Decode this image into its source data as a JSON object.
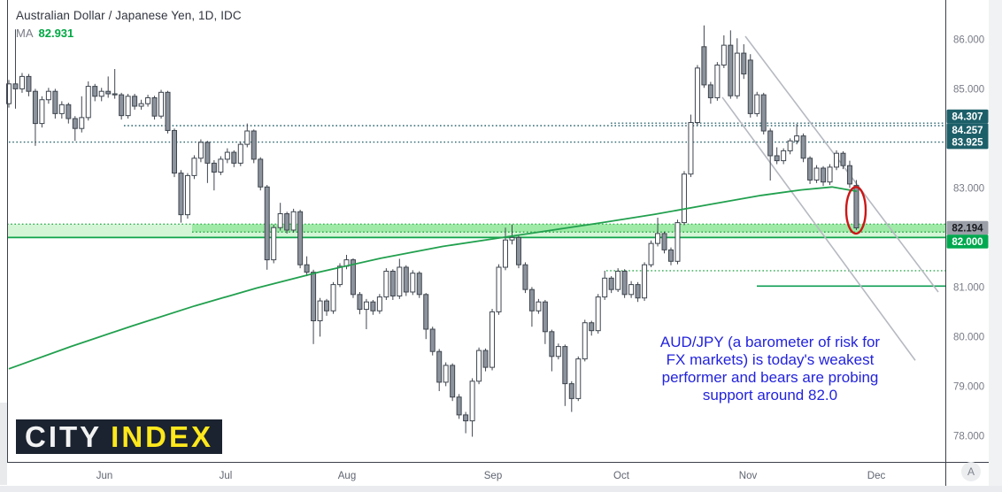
{
  "header": {
    "title": "Australian Dollar / Japanese Yen, 1D, IDC",
    "ma_label": "MA",
    "ma_value": "82.931",
    "ma_value_color": "#00a843"
  },
  "annotation": {
    "color": "#2323dd",
    "text": "AUD/JPY (a barometer of risk for FX markets) is today's weakest performer and bears are probing support around 82.0",
    "lines": [
      "AUD/JPY (a barometer of risk for",
      "FX markets) is today's weakest",
      "performer and bears are probing",
      "support around 82.0"
    ]
  },
  "logo": {
    "part1": "CITY",
    "part2": "INDEX",
    "bg": "#1b2330",
    "color1": "#f2f2f2",
    "color2": "#ffe81c"
  },
  "x_axis": {
    "months": [
      {
        "label": "Jun",
        "x": 118
      },
      {
        "label": "Jul",
        "x": 255
      },
      {
        "label": "Aug",
        "x": 392
      },
      {
        "label": "Sep",
        "x": 557
      },
      {
        "label": "Oct",
        "x": 702
      },
      {
        "label": "Nov",
        "x": 845
      },
      {
        "label": "Dec",
        "x": 990
      }
    ],
    "overlay_button": "A"
  },
  "y_axis": {
    "ticks": [
      {
        "label": "86.000",
        "price": 86.0
      },
      {
        "label": "85.000",
        "price": 85.0
      },
      {
        "label": "83.000",
        "price": 83.0
      },
      {
        "label": "81.000",
        "price": 81.0
      },
      {
        "label": "80.000",
        "price": 80.0
      },
      {
        "label": "79.000",
        "price": 79.0
      },
      {
        "label": "78.000",
        "price": 78.0
      }
    ]
  },
  "price_badges": [
    {
      "label": "84.307",
      "price": 84.307,
      "dy": -7.7,
      "bg": "#1c5f69",
      "fg": "#ffffff"
    },
    {
      "label": "84.257",
      "price": 84.257,
      "dy": 5.0,
      "bg": "#1c5f69",
      "fg": "#ffffff"
    },
    {
      "label": "83.925",
      "price": 83.925,
      "dy": 0.0,
      "bg": "#1c5f69",
      "fg": "#ffffff"
    },
    {
      "label": "82.194",
      "price": 82.194,
      "dy": 0.0,
      "bg": "#9b9fa8",
      "fg": "#16181d"
    },
    {
      "label": "82.000",
      "price": 82.0,
      "dy": 4.6,
      "bg": "#00a94f",
      "fg": "#ffffff"
    }
  ],
  "chart_data": {
    "type": "candlestick",
    "symbol": "AUD/JPY",
    "timeframe": "1D",
    "source": "IDC",
    "ylim": [
      77.6,
      86.65
    ],
    "grid": false,
    "legend_position": "top-left",
    "up_color": "#ffffff",
    "down_color": "#8d939c",
    "candle_border": "#3e454e",
    "candles": [
      [
        84.7,
        85.18,
        84.62,
        85.1
      ],
      [
        85.1,
        86.2,
        84.6,
        85.0
      ],
      [
        85.0,
        85.32,
        84.92,
        85.25
      ],
      [
        85.25,
        85.3,
        84.85,
        84.95
      ],
      [
        84.95,
        85.0,
        83.85,
        84.3
      ],
      [
        84.3,
        84.85,
        84.22,
        84.78
      ],
      [
        84.78,
        85.02,
        84.7,
        84.95
      ],
      [
        84.95,
        85.0,
        84.4,
        84.5
      ],
      [
        84.5,
        84.75,
        84.4,
        84.68
      ],
      [
        84.68,
        84.72,
        84.3,
        84.4
      ],
      [
        84.4,
        84.45,
        83.95,
        84.2
      ],
      [
        84.2,
        84.85,
        84.12,
        84.42
      ],
      [
        84.42,
        85.15,
        84.36,
        85.05
      ],
      [
        85.05,
        85.1,
        84.75,
        84.85
      ],
      [
        84.85,
        85.02,
        84.75,
        84.95
      ],
      [
        84.95,
        85.25,
        84.82,
        84.9
      ],
      [
        84.9,
        85.4,
        84.8,
        84.88
      ],
      [
        84.88,
        84.92,
        84.38,
        84.46
      ],
      [
        84.46,
        84.9,
        84.4,
        84.85
      ],
      [
        84.85,
        84.9,
        84.58,
        84.65
      ],
      [
        84.65,
        84.78,
        84.58,
        84.7
      ],
      [
        84.7,
        84.88,
        84.64,
        84.82
      ],
      [
        84.82,
        84.86,
        84.38,
        84.45
      ],
      [
        84.45,
        84.98,
        84.4,
        84.93
      ],
      [
        84.93,
        84.96,
        84.1,
        84.16
      ],
      [
        84.16,
        84.2,
        83.22,
        83.3
      ],
      [
        83.3,
        83.36,
        82.3,
        82.46
      ],
      [
        82.46,
        83.3,
        82.38,
        83.25
      ],
      [
        83.25,
        83.66,
        83.18,
        83.6
      ],
      [
        83.6,
        83.98,
        83.52,
        83.92
      ],
      [
        83.92,
        83.95,
        83.1,
        83.5
      ],
      [
        83.5,
        83.56,
        82.95,
        83.32
      ],
      [
        83.32,
        83.64,
        83.26,
        83.58
      ],
      [
        83.58,
        83.8,
        83.5,
        83.72
      ],
      [
        83.72,
        83.76,
        83.42,
        83.5
      ],
      [
        83.5,
        83.94,
        83.44,
        83.88
      ],
      [
        83.88,
        84.3,
        83.82,
        84.15
      ],
      [
        84.15,
        84.18,
        83.5,
        83.58
      ],
      [
        83.58,
        83.62,
        82.95,
        83.02
      ],
      [
        83.02,
        83.06,
        81.35,
        81.55
      ],
      [
        81.55,
        82.26,
        81.48,
        82.2
      ],
      [
        82.2,
        82.7,
        82.14,
        82.48
      ],
      [
        82.48,
        82.52,
        82.08,
        82.15
      ],
      [
        82.15,
        82.58,
        82.1,
        82.52
      ],
      [
        82.52,
        82.56,
        81.38,
        81.45
      ],
      [
        81.45,
        81.62,
        81.22,
        81.3
      ],
      [
        81.3,
        81.35,
        79.85,
        80.32
      ],
      [
        80.32,
        80.78,
        80.0,
        80.72
      ],
      [
        80.72,
        80.76,
        80.42,
        80.52
      ],
      [
        80.52,
        81.1,
        80.46,
        81.05
      ],
      [
        81.05,
        81.48,
        81.0,
        81.42
      ],
      [
        81.42,
        81.65,
        81.36,
        81.55
      ],
      [
        81.55,
        81.58,
        80.78,
        80.85
      ],
      [
        80.85,
        80.9,
        80.45,
        80.55
      ],
      [
        80.55,
        80.76,
        80.15,
        80.7
      ],
      [
        80.7,
        80.74,
        80.44,
        80.52
      ],
      [
        80.52,
        80.86,
        80.46,
        80.8
      ],
      [
        80.8,
        81.38,
        80.74,
        81.32
      ],
      [
        81.32,
        81.36,
        80.74,
        80.82
      ],
      [
        80.82,
        81.57,
        80.76,
        81.4
      ],
      [
        81.4,
        81.44,
        80.82,
        80.9
      ],
      [
        80.9,
        81.34,
        80.84,
        81.28
      ],
      [
        81.28,
        81.32,
        80.78,
        80.85
      ],
      [
        80.85,
        80.88,
        79.95,
        80.15
      ],
      [
        80.15,
        80.2,
        79.62,
        79.7
      ],
      [
        79.7,
        79.75,
        78.9,
        79.08
      ],
      [
        79.08,
        79.48,
        79.0,
        79.42
      ],
      [
        79.42,
        79.46,
        78.7,
        78.78
      ],
      [
        78.78,
        78.84,
        78.34,
        78.42
      ],
      [
        78.42,
        78.48,
        78.05,
        78.3
      ],
      [
        78.3,
        79.16,
        77.98,
        79.1
      ],
      [
        79.1,
        79.78,
        79.04,
        79.72
      ],
      [
        79.72,
        79.76,
        79.3,
        79.38
      ],
      [
        79.38,
        80.56,
        79.32,
        80.5
      ],
      [
        80.5,
        81.46,
        80.44,
        81.4
      ],
      [
        81.4,
        82.2,
        81.34,
        81.95
      ],
      [
        81.95,
        82.26,
        81.86,
        82.0
      ],
      [
        82.0,
        82.04,
        81.38,
        81.45
      ],
      [
        81.45,
        81.5,
        80.88,
        80.95
      ],
      [
        80.95,
        81.0,
        80.2,
        80.52
      ],
      [
        80.52,
        80.76,
        80.46,
        80.7
      ],
      [
        80.7,
        80.74,
        79.85,
        80.1
      ],
      [
        80.1,
        80.14,
        79.3,
        79.6
      ],
      [
        79.6,
        79.86,
        79.54,
        79.8
      ],
      [
        79.8,
        79.84,
        78.6,
        79.05
      ],
      [
        79.05,
        79.1,
        78.48,
        78.75
      ],
      [
        78.75,
        79.6,
        78.7,
        79.55
      ],
      [
        79.55,
        80.34,
        79.5,
        80.28
      ],
      [
        80.28,
        80.32,
        80.02,
        80.12
      ],
      [
        80.12,
        80.86,
        80.06,
        80.8
      ],
      [
        80.8,
        81.33,
        80.74,
        81.18
      ],
      [
        81.18,
        81.22,
        80.88,
        80.95
      ],
      [
        80.95,
        81.38,
        80.9,
        81.32
      ],
      [
        81.32,
        81.36,
        80.78,
        80.85
      ],
      [
        80.85,
        81.12,
        80.78,
        81.05
      ],
      [
        81.05,
        81.1,
        80.7,
        80.78
      ],
      [
        80.78,
        81.5,
        80.72,
        81.45
      ],
      [
        81.45,
        81.94,
        81.4,
        81.88
      ],
      [
        81.88,
        82.4,
        81.82,
        82.08
      ],
      [
        82.08,
        82.12,
        81.68,
        81.75
      ],
      [
        81.75,
        81.8,
        81.44,
        81.52
      ],
      [
        81.52,
        82.36,
        81.46,
        82.3
      ],
      [
        82.3,
        83.34,
        82.25,
        83.28
      ],
      [
        83.28,
        84.48,
        83.22,
        84.32
      ],
      [
        84.32,
        85.48,
        84.26,
        85.42
      ],
      [
        85.85,
        86.28,
        85.02,
        85.08
      ],
      [
        85.08,
        85.14,
        84.7,
        84.82
      ],
      [
        84.82,
        85.54,
        84.76,
        85.48
      ],
      [
        85.48,
        86.08,
        85.42,
        85.88
      ],
      [
        85.88,
        86.18,
        84.8,
        84.86
      ],
      [
        84.86,
        86.02,
        84.8,
        85.72
      ],
      [
        85.72,
        85.9,
        85.2,
        85.3
      ],
      [
        85.58,
        85.7,
        84.42,
        84.5
      ],
      [
        84.5,
        84.94,
        84.44,
        84.88
      ],
      [
        84.88,
        84.92,
        84.08,
        84.15
      ],
      [
        84.15,
        84.2,
        83.15,
        83.65
      ],
      [
        83.65,
        83.82,
        83.48,
        83.55
      ],
      [
        83.55,
        83.8,
        83.48,
        83.75
      ],
      [
        83.75,
        84.0,
        83.68,
        83.95
      ],
      [
        83.95,
        84.29,
        83.88,
        84.05
      ],
      [
        84.05,
        84.1,
        83.52,
        83.6
      ],
      [
        83.6,
        83.64,
        83.08,
        83.16
      ],
      [
        83.16,
        83.46,
        83.1,
        83.4
      ],
      [
        83.4,
        83.44,
        83.04,
        83.12
      ],
      [
        83.12,
        83.48,
        83.06,
        83.42
      ],
      [
        83.42,
        83.76,
        83.36,
        83.7
      ],
      [
        83.7,
        83.74,
        83.38,
        83.45
      ],
      [
        83.45,
        83.55,
        83.0,
        83.08
      ],
      [
        83.05,
        83.16,
        82.15,
        82.194
      ]
    ],
    "ma": {
      "name": "MA",
      "last_value": 82.931,
      "color": "#21a04e",
      "points": [
        [
          10,
          79.35
        ],
        [
          80,
          79.8
        ],
        [
          150,
          80.22
        ],
        [
          220,
          80.62
        ],
        [
          290,
          80.98
        ],
        [
          360,
          81.3
        ],
        [
          430,
          81.58
        ],
        [
          500,
          81.82
        ],
        [
          560,
          81.98
        ],
        [
          620,
          82.14
        ],
        [
          680,
          82.3
        ],
        [
          740,
          82.47
        ],
        [
          800,
          82.66
        ],
        [
          860,
          82.85
        ],
        [
          905,
          82.96
        ],
        [
          940,
          83.02
        ],
        [
          968,
          82.93
        ]
      ]
    },
    "levels": [
      {
        "name": "resistance-84307",
        "price": 84.307,
        "x_start": 690,
        "style": "dotted",
        "color": "#2c6770"
      },
      {
        "name": "resistance-84257",
        "price": 84.257,
        "x_start": 140,
        "style": "dotted",
        "color": "#2c6770"
      },
      {
        "name": "resistance-83925",
        "price": 83.925,
        "x_start": 10,
        "style": "dotted",
        "color": "#2c6770"
      },
      {
        "name": "minor-level-8133",
        "price": 81.33,
        "x_start": 685,
        "style": "dotted",
        "color": "#2faa4f"
      },
      {
        "name": "support-8102",
        "price": 81.02,
        "x_start": 855,
        "style": "solid",
        "color": "#0c9e53"
      }
    ],
    "zones": [
      {
        "name": "support-zone-outer",
        "price_top": 82.27,
        "price_bottom": 82.0,
        "x_start": 8,
        "fill": "rgba(125,228,132,0.33)",
        "top_edge": "dotted",
        "bottom_edge": "solid",
        "edge_color": "#2faa4f",
        "bottom_color": "#0fa44a"
      },
      {
        "name": "support-zone-inner",
        "price_top": 82.27,
        "price_bottom": 82.11,
        "x_start": 217,
        "fill": "rgba(84,218,101,0.42)",
        "top_edge": "none",
        "bottom_edge": "dotted",
        "edge_color": "#2faa4f",
        "bottom_color": "#2faa4f"
      }
    ],
    "trendlines": [
      {
        "name": "channel-upper",
        "x1": 842,
        "price1": 86.06,
        "x2": 1060,
        "price2": 80.9,
        "color": "#b6b9c1"
      },
      {
        "name": "channel-lower",
        "x1": 816,
        "price1": 84.83,
        "x2": 1034,
        "price2": 79.52,
        "color": "#b6b9c1"
      }
    ],
    "highlight_ellipse": {
      "x": 967,
      "price_center": 82.55,
      "price_half_range": 0.47,
      "rx": 11,
      "color": "#cc1616"
    }
  }
}
